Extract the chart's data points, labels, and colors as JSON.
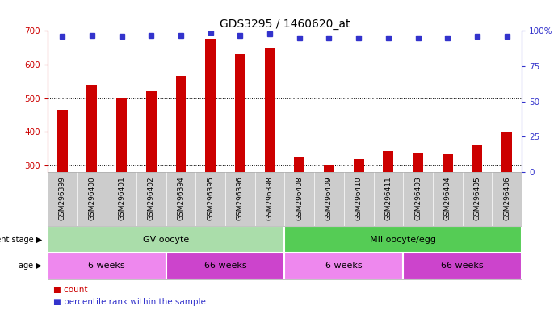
{
  "title": "GDS3295 / 1460620_at",
  "samples": [
    "GSM296399",
    "GSM296400",
    "GSM296401",
    "GSM296402",
    "GSM296394",
    "GSM296395",
    "GSM296396",
    "GSM296398",
    "GSM296408",
    "GSM296409",
    "GSM296410",
    "GSM296411",
    "GSM296403",
    "GSM296404",
    "GSM296405",
    "GSM296406"
  ],
  "counts": [
    465,
    540,
    500,
    520,
    567,
    677,
    632,
    650,
    325,
    300,
    318,
    342,
    335,
    332,
    362,
    400
  ],
  "percentile_ranks": [
    96,
    97,
    96,
    97,
    97,
    99,
    97,
    98,
    95,
    95,
    95,
    95,
    95,
    95,
    96,
    96
  ],
  "ylim_left": [
    280,
    700
  ],
  "ylim_right": [
    0,
    100
  ],
  "yticks_left": [
    300,
    400,
    500,
    600,
    700
  ],
  "yticks_right": [
    0,
    25,
    50,
    75,
    100
  ],
  "bar_color": "#cc0000",
  "dot_color": "#3333cc",
  "background_color": "#ffffff",
  "dev_stage_groups": [
    {
      "label": "GV oocyte",
      "start": 0,
      "end": 7,
      "color": "#aaddaa"
    },
    {
      "label": "MII oocyte/egg",
      "start": 8,
      "end": 15,
      "color": "#55cc55"
    }
  ],
  "age_groups": [
    {
      "label": "6 weeks",
      "start": 0,
      "end": 3,
      "color": "#ee88ee"
    },
    {
      "label": "66 weeks",
      "start": 4,
      "end": 7,
      "color": "#cc44cc"
    },
    {
      "label": "6 weeks",
      "start": 8,
      "end": 11,
      "color": "#ee88ee"
    },
    {
      "label": "66 weeks",
      "start": 12,
      "end": 15,
      "color": "#cc44cc"
    }
  ],
  "legend_count_color": "#cc0000",
  "legend_pct_color": "#3333cc",
  "tick_label_color_left": "#cc0000",
  "tick_label_color_right": "#3333cc",
  "annotation_dev": "development stage",
  "annotation_age": "age"
}
